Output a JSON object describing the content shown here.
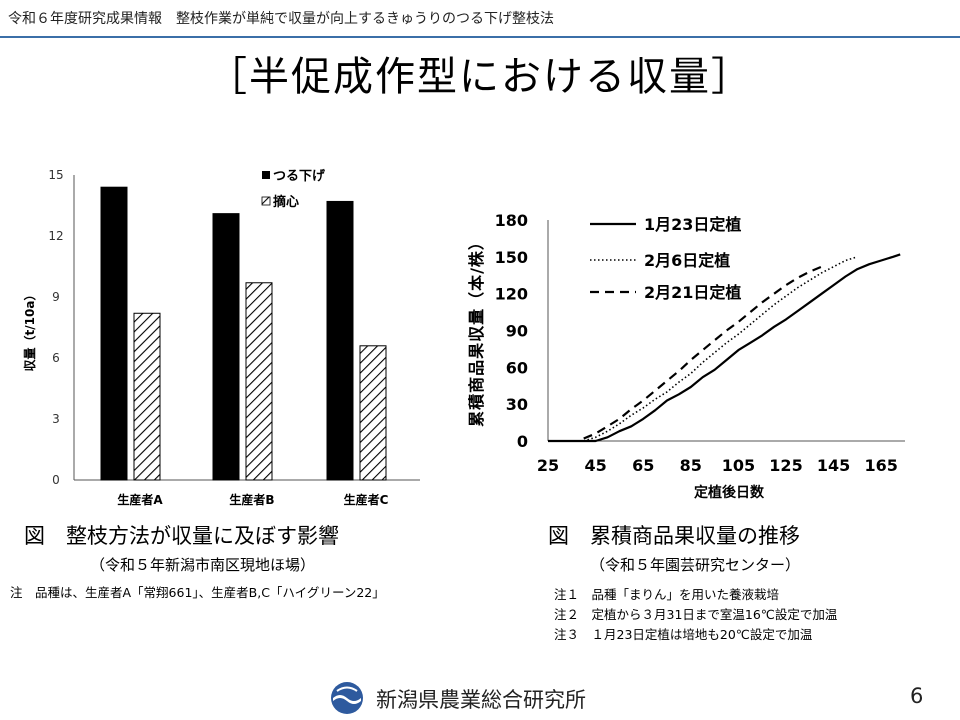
{
  "header": {
    "text": "令和６年度研究成果情報　整枝作業が単純で収量が向上するきゅうりのつる下げ整枝法"
  },
  "slide": {
    "title": "［半促成作型における収量］",
    "page_number": "6"
  },
  "footer": {
    "organization": "新潟県農業総合研究所",
    "logo_icon": "niigata-prefecture-logo-icon"
  },
  "colors": {
    "accent": "#3b6fa8",
    "bar_solid": "#000000"
  },
  "left_figure": {
    "caption": "図　整枝方法が収量に及ぼす影響",
    "subcaption": "（令和５年新潟市南区現地ほ場）",
    "note": "注　品種は、生産者A「常翔661」、生産者B,C「ハイグリーン22」"
  },
  "right_figure": {
    "caption": "図　累積商品果収量の推移",
    "subcaption": "（令和５年園芸研究センター）",
    "notes": [
      "注１　品種「まりん」を用いた養液栽培",
      "注２　定植から３月31日まで室温16℃設定で加温",
      "注３　１月23日定植は培地も20℃設定で加温"
    ]
  },
  "chart_data": [
    {
      "type": "bar",
      "categories": [
        "生産者A",
        "生産者B",
        "生産者C"
      ],
      "series": [
        {
          "name": "つる下げ",
          "values": [
            14.4,
            13.1,
            13.7
          ],
          "pattern": "solid"
        },
        {
          "name": "摘心",
          "values": [
            8.2,
            9.7,
            6.6
          ],
          "pattern": "hatched"
        }
      ],
      "title": "",
      "xlabel": "",
      "ylabel": "収量（t/10a）",
      "ylim": [
        0,
        15
      ],
      "yticks": [
        "0",
        "3",
        "6",
        "9",
        "12",
        "15"
      ],
      "grid": false,
      "legend_position": "top-right"
    },
    {
      "type": "line",
      "series": [
        {
          "name": "1月23日定植",
          "style": "solid",
          "points": [
            [
              25,
              0
            ],
            [
              45,
              0
            ],
            [
              50,
              3
            ],
            [
              55,
              8
            ],
            [
              60,
              12
            ],
            [
              65,
              18
            ],
            [
              70,
              25
            ],
            [
              75,
              33
            ],
            [
              80,
              38
            ],
            [
              85,
              44
            ],
            [
              90,
              52
            ],
            [
              95,
              58
            ],
            [
              100,
              66
            ],
            [
              105,
              74
            ],
            [
              110,
              80
            ],
            [
              115,
              86
            ],
            [
              120,
              93
            ],
            [
              125,
              99
            ],
            [
              130,
              106
            ],
            [
              135,
              113
            ],
            [
              140,
              120
            ],
            [
              145,
              127
            ],
            [
              150,
              134
            ],
            [
              155,
              140
            ],
            [
              160,
              144
            ],
            [
              165,
              147
            ],
            [
              170,
              150
            ],
            [
              173,
              152
            ]
          ]
        },
        {
          "name": "2月6日定植",
          "style": "dotted",
          "points": [
            [
              40,
              0
            ],
            [
              45,
              3
            ],
            [
              50,
              8
            ],
            [
              55,
              14
            ],
            [
              60,
              21
            ],
            [
              65,
              27
            ],
            [
              70,
              34
            ],
            [
              75,
              40
            ],
            [
              80,
              48
            ],
            [
              85,
              55
            ],
            [
              90,
              64
            ],
            [
              95,
              72
            ],
            [
              100,
              80
            ],
            [
              105,
              87
            ],
            [
              110,
              95
            ],
            [
              115,
              103
            ],
            [
              120,
              111
            ],
            [
              125,
              118
            ],
            [
              130,
              125
            ],
            [
              135,
              131
            ],
            [
              140,
              137
            ],
            [
              145,
              142
            ],
            [
              150,
              147
            ],
            [
              155,
              150
            ]
          ]
        },
        {
          "name": "2月21日定植",
          "style": "dashed",
          "points": [
            [
              40,
              2
            ],
            [
              45,
              6
            ],
            [
              50,
              12
            ],
            [
              55,
              18
            ],
            [
              60,
              26
            ],
            [
              65,
              33
            ],
            [
              70,
              41
            ],
            [
              75,
              49
            ],
            [
              80,
              57
            ],
            [
              85,
              66
            ],
            [
              90,
              74
            ],
            [
              95,
              82
            ],
            [
              100,
              90
            ],
            [
              105,
              97
            ],
            [
              110,
              105
            ],
            [
              115,
              113
            ],
            [
              120,
              120
            ],
            [
              125,
              127
            ],
            [
              130,
              133
            ],
            [
              135,
              138
            ],
            [
              140,
              142
            ]
          ]
        }
      ],
      "title": "",
      "xlabel": "定植後日数",
      "ylabel": "累積商品果収量（本/株）",
      "xlim": [
        25,
        175
      ],
      "ylim": [
        0,
        180
      ],
      "xticks": [
        "25",
        "45",
        "65",
        "85",
        "105",
        "125",
        "145",
        "165"
      ],
      "yticks": [
        "0",
        "30",
        "60",
        "90",
        "120",
        "150",
        "180"
      ],
      "grid": false,
      "legend_position": "top-left"
    }
  ]
}
